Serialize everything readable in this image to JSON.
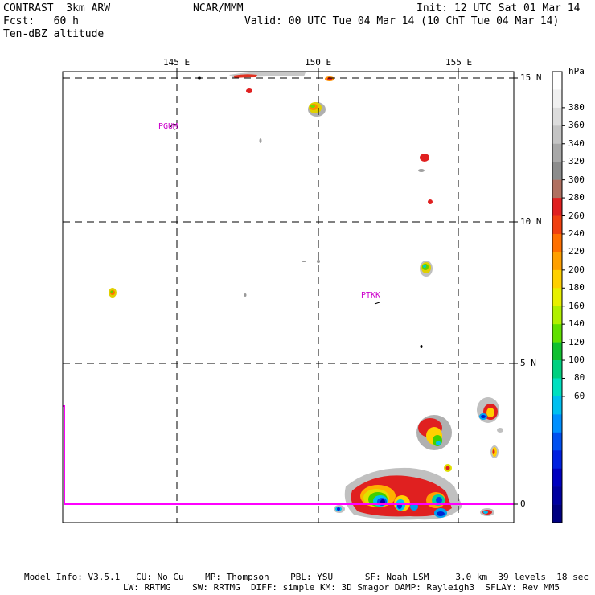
{
  "header": {
    "left_line1": "CONTRAST  3km ARW",
    "left_line2": "Fcst:   60 h",
    "left_line3": "Ten-dBZ altitude",
    "center": "NCAR/MMM",
    "right_line1": "Init: 12 UTC Sat 01 Mar 14",
    "right_line2": "Valid: 00 UTC Tue 04 Mar 14 (10 ChT Tue 04 Mar 14)"
  },
  "map": {
    "lon_labels": [
      "145 E",
      "150 E",
      "155 E"
    ],
    "lat_labels": [
      "15 N",
      "10 N",
      "5 N",
      "0"
    ],
    "stations": [
      {
        "id": "PGUM"
      },
      {
        "id": "PTKK"
      }
    ],
    "colors": {
      "frame": "#000000",
      "boundary": "#ff00ff",
      "station_label": "#cc00cc"
    }
  },
  "colorbar": {
    "unit": "hPa",
    "labels": [
      "380",
      "360",
      "340",
      "320",
      "300",
      "280",
      "260",
      "240",
      "220",
      "200",
      "180",
      "160",
      "140",
      "120",
      "100",
      "80",
      "60"
    ],
    "colors": [
      "#ffffff",
      "#f0f0f0",
      "#dcdcdc",
      "#c4c4c4",
      "#a8a8a8",
      "#8c8c8c",
      "#b07060",
      "#e02020",
      "#f04010",
      "#ff7000",
      "#ffa000",
      "#ffd000",
      "#e8f000",
      "#b0f000",
      "#60e000",
      "#10c030",
      "#00d080",
      "#00e0c0",
      "#00c0f0",
      "#0090ff",
      "#0050f0",
      "#0020e0",
      "#0000c0",
      "#0000a0",
      "#000080"
    ]
  },
  "footer": {
    "line1": "Model Info: V3.5.1   CU: No Cu    MP: Thompson    PBL: YSU      SF: Noah LSM     3.0 km  39 levels  18 sec",
    "line2": "LW: RRTMG    SW: RRTMG  DIFF: simple KM: 3D Smagor DAMP: Rayleigh3  SFLAY: Rev MM5"
  }
}
